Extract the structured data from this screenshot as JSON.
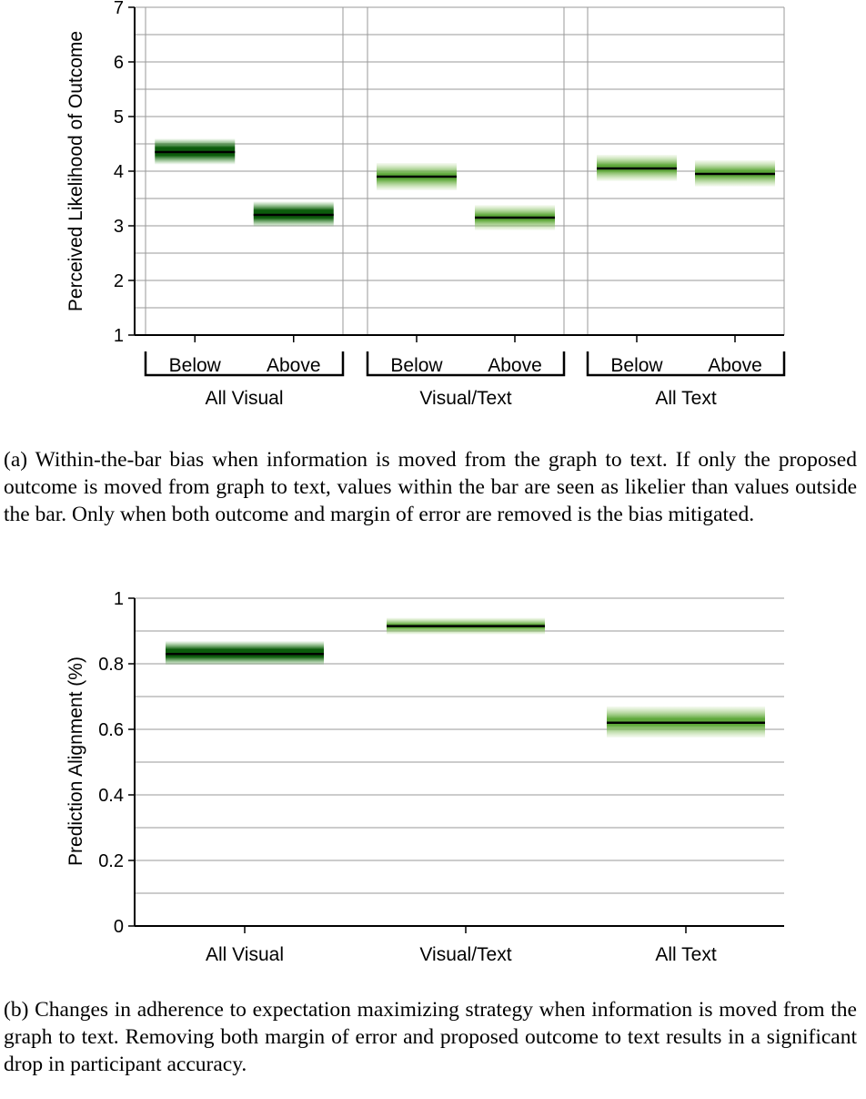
{
  "chart_data": [
    {
      "type": "bar",
      "mark": "gradient-interval-with-mean-line",
      "ylabel": "Perceived Likelihood of Outcome",
      "ylim": [
        1,
        7
      ],
      "yticks": [
        "1",
        "2",
        "3",
        "4",
        "5",
        "6",
        "7"
      ],
      "grid": true,
      "groups": [
        {
          "label": "All Visual",
          "style": "dark",
          "categories": [
            {
              "label": "Below",
              "mean": 4.35,
              "low": 4.12,
              "high": 4.6
            },
            {
              "label": "Above",
              "mean": 3.2,
              "low": 2.98,
              "high": 3.45
            }
          ]
        },
        {
          "label": "Visual/Text",
          "style": "light",
          "categories": [
            {
              "label": "Below",
              "mean": 3.9,
              "low": 3.65,
              "high": 4.15
            },
            {
              "label": "Above",
              "mean": 3.15,
              "low": 2.92,
              "high": 3.38
            }
          ]
        },
        {
          "label": "All Text",
          "style": "light",
          "categories": [
            {
              "label": "Below",
              "mean": 4.05,
              "low": 3.82,
              "high": 4.3
            },
            {
              "label": "Above",
              "mean": 3.95,
              "low": 3.72,
              "high": 4.2
            }
          ]
        }
      ]
    },
    {
      "type": "bar",
      "mark": "gradient-interval-with-mean-line",
      "ylabel": "Prediction Alignment (%)",
      "ylim": [
        0,
        1
      ],
      "yticks": [
        "0",
        "0.2",
        "0.4",
        "0.6",
        "0.8",
        "1"
      ],
      "grid": true,
      "categories": [
        {
          "label": "All Visual",
          "style": "dark",
          "mean": 0.83,
          "low": 0.795,
          "high": 0.87
        },
        {
          "label": "Visual/Text",
          "style": "light",
          "mean": 0.915,
          "low": 0.89,
          "high": 0.94
        },
        {
          "label": "All Text",
          "style": "light",
          "mean": 0.62,
          "low": 0.575,
          "high": 0.67
        }
      ]
    }
  ],
  "captions": {
    "a": "(a) Within-the-bar bias when information is moved from the graph to text. If only the proposed outcome is moved from graph to text, values within the bar are seen as likelier than values outside the bar. Only when both outcome and margin of error are removed is the bias mitigated.",
    "b": "(b) Changes in adherence to expectation maximizing strategy when information is moved from the graph to text. Removing both margin of error and proposed outcome to text results in a significant drop in participant accuracy."
  },
  "colors": {
    "dark_core": "#0c5c0c",
    "dark_edge": "#3f9a2e",
    "light_core": "#5ea83a",
    "light_edge": "#a6d07e",
    "mean_line": "#000000",
    "grid": "#9a9a9a",
    "axis": "#000000"
  }
}
